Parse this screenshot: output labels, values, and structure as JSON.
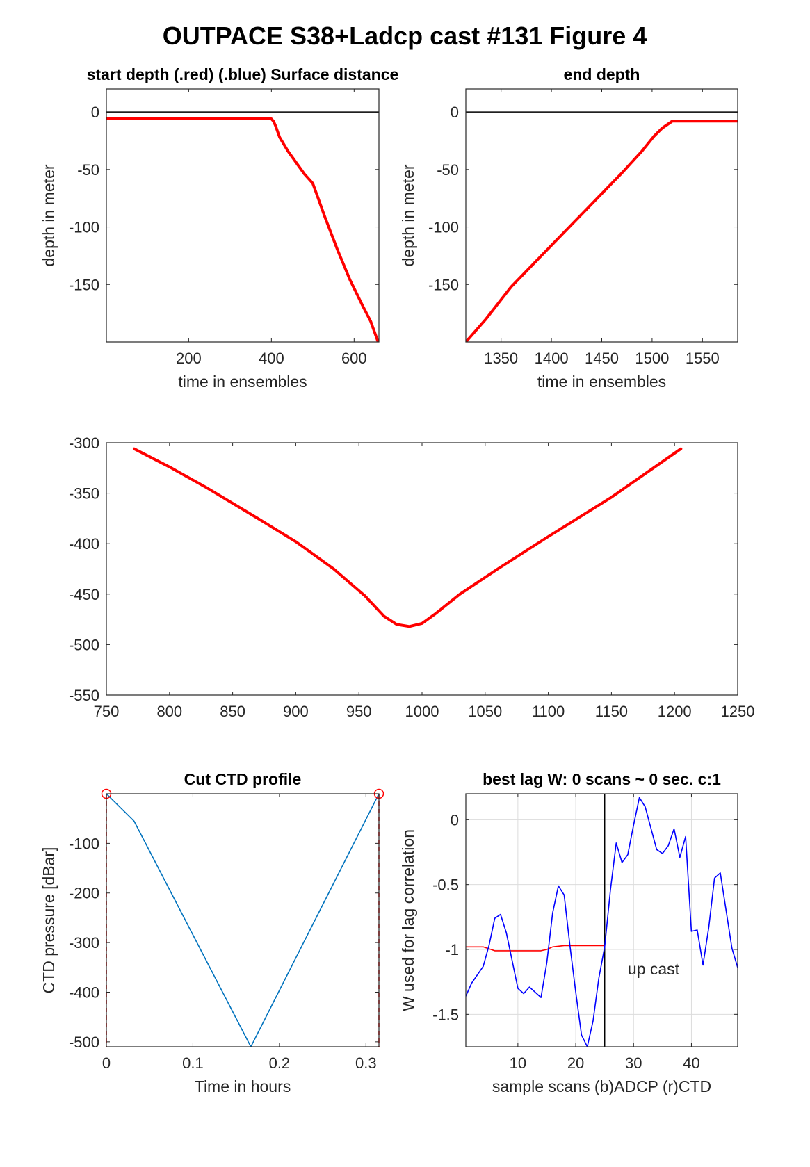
{
  "figure_title": "OUTPACE S38+Ladcp cast #131   Figure 4",
  "colors": {
    "red": "#ff0000",
    "blue": "#0000ff",
    "ctd_line": "#0072bd",
    "axis": "#262626",
    "grid": "#dcdcdc"
  },
  "chart_data": [
    {
      "id": "start",
      "type": "line",
      "title": "start depth (.red) (.blue) Surface distance",
      "xlabel": "time in ensembles",
      "ylabel": "depth in meter",
      "xlim": [
        1,
        660
      ],
      "ylim": [
        -200,
        20
      ],
      "xticks": [
        200,
        400,
        600
      ],
      "yticks": [
        0,
        -50,
        -100,
        -150
      ],
      "hlines": [
        0
      ],
      "series": [
        {
          "color": "#ff0000",
          "width": 4,
          "x": [
            1,
            395,
            400,
            405,
            410,
            420,
            440,
            460,
            480,
            500,
            510,
            530,
            560,
            590,
            620,
            640,
            658
          ],
          "y": [
            -6,
            -6,
            -6,
            -8,
            -12,
            -22,
            -34,
            -44,
            -54,
            -62,
            -72,
            -92,
            -120,
            -146,
            -168,
            -182,
            -200
          ]
        }
      ]
    },
    {
      "id": "end",
      "type": "line",
      "title": "end depth",
      "xlabel": "time in ensembles",
      "ylabel": "depth in meter",
      "xlim": [
        1315,
        1585
      ],
      "ylim": [
        -200,
        20
      ],
      "xticks": [
        1350,
        1400,
        1450,
        1500,
        1550
      ],
      "yticks": [
        0,
        -50,
        -100,
        -150
      ],
      "hlines": [
        0
      ],
      "series": [
        {
          "color": "#ff0000",
          "width": 4,
          "x": [
            1315,
            1335,
            1360,
            1400,
            1440,
            1470,
            1490,
            1502,
            1510,
            1520,
            1550,
            1585
          ],
          "y": [
            -200,
            -180,
            -152,
            -116,
            -80,
            -53,
            -34,
            -21,
            -14,
            -8,
            -8,
            -8
          ]
        }
      ]
    },
    {
      "id": "middle",
      "type": "line",
      "title": "",
      "xlabel": "",
      "ylabel": "",
      "xlim": [
        750,
        1250
      ],
      "ylim": [
        -550,
        -300
      ],
      "xticks": [
        750,
        800,
        850,
        900,
        950,
        1000,
        1050,
        1100,
        1150,
        1200,
        1250
      ],
      "yticks": [
        -300,
        -350,
        -400,
        -450,
        -500,
        -550
      ],
      "series": [
        {
          "color": "#ff0000",
          "width": 4,
          "x": [
            772,
            800,
            830,
            870,
            900,
            930,
            955,
            970,
            980,
            990,
            1000,
            1010,
            1030,
            1060,
            1100,
            1150,
            1205
          ],
          "y": [
            -306,
            -324,
            -345,
            -375,
            -398,
            -425,
            -452,
            -472,
            -480,
            -482,
            -479,
            -470,
            -450,
            -425,
            -393,
            -354,
            -306
          ]
        }
      ]
    },
    {
      "id": "ctd",
      "type": "line",
      "title": "Cut CTD profile",
      "xlabel": "Time in hours",
      "ylabel": "CTD pressure [dBar]",
      "xlim": [
        0,
        0.315
      ],
      "ylim": [
        -510,
        0
      ],
      "xticks": [
        0,
        0.1,
        0.2,
        0.3
      ],
      "yticks": [
        -100,
        -200,
        -300,
        -400,
        -500
      ],
      "series": [
        {
          "color": "#0072bd",
          "width": 1.6,
          "x": [
            0,
            0.032,
            0.167,
            0.315
          ],
          "y": [
            0,
            -55,
            -510,
            0
          ]
        }
      ],
      "vlines": [
        {
          "x": 0,
          "color": "#ff0000",
          "dash": "6,5"
        },
        {
          "x": 0.315,
          "color": "#ff0000",
          "dash": "6,5"
        }
      ],
      "markers": [
        {
          "x": 0,
          "y": 0,
          "color": "#ff0000"
        },
        {
          "x": 0.315,
          "y": 0,
          "color": "#ff0000"
        }
      ]
    },
    {
      "id": "lag",
      "type": "line",
      "title": "best lag W: 0 scans ~ 0 sec.  c:1",
      "xlabel": "sample scans (b)ADCP (r)CTD",
      "ylabel": "W used for lag correlation",
      "xlim": [
        1,
        48
      ],
      "ylim": [
        -1.75,
        0.2
      ],
      "xticks": [
        10,
        20,
        30,
        40
      ],
      "yticks": [
        0,
        -0.5,
        -1,
        -1.5
      ],
      "grid": true,
      "vlines": [
        {
          "x": 25,
          "color": "#000000"
        }
      ],
      "annotations": [
        {
          "text": "up cast",
          "x": 29,
          "y": -1.15
        }
      ],
      "series": [
        {
          "color": "#ff0000",
          "width": 1.6,
          "x": [
            1,
            4,
            6,
            8,
            10,
            12,
            14,
            15,
            16,
            18,
            20,
            22,
            25
          ],
          "y": [
            -0.98,
            -0.98,
            -1.01,
            -1.01,
            -1.01,
            -1.01,
            -1.01,
            -1.0,
            -0.98,
            -0.97,
            -0.97,
            -0.97,
            -0.97
          ]
        },
        {
          "color": "#0000ff",
          "width": 1.6,
          "x": [
            1,
            2,
            4,
            5,
            6,
            7,
            8,
            10,
            11,
            12,
            14,
            15,
            16,
            17,
            18,
            19,
            20,
            21,
            22,
            23,
            24,
            25,
            26,
            27,
            28,
            29,
            30,
            31,
            32,
            34,
            35,
            36,
            37,
            38,
            39,
            40,
            41,
            42,
            43,
            44,
            45,
            47,
            48
          ],
          "y": [
            -1.36,
            -1.26,
            -1.13,
            -0.97,
            -0.76,
            -0.73,
            -0.87,
            -1.3,
            -1.34,
            -1.29,
            -1.37,
            -1.1,
            -0.72,
            -0.51,
            -0.58,
            -0.97,
            -1.33,
            -1.66,
            -1.75,
            -1.55,
            -1.22,
            -0.98,
            -0.54,
            -0.18,
            -0.33,
            -0.27,
            -0.04,
            0.17,
            0.1,
            -0.23,
            -0.26,
            -0.2,
            -0.07,
            -0.29,
            -0.13,
            -0.86,
            -0.85,
            -1.12,
            -0.83,
            -0.45,
            -0.41,
            -0.99,
            -1.14
          ]
        }
      ]
    }
  ]
}
